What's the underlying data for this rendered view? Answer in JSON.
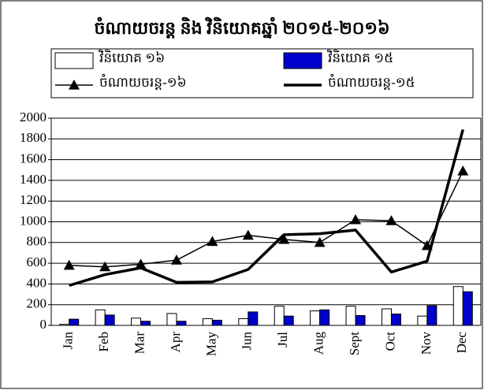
{
  "chart_data": {
    "type": "combo",
    "title": "ចំណាយចរន្ត និង វិនិយោគឆ្នាំ ២០១៥-២០១៦",
    "categories": [
      "Jan",
      "Feb",
      "Mar",
      "Apr",
      "May",
      "Jun",
      "Jul",
      "Aug",
      "Sept",
      "Oct",
      "Nov",
      "Dec"
    ],
    "series": [
      {
        "name": "វិនិយោគ ១៦",
        "type": "bar",
        "color": "#ffffff",
        "values": [
          10,
          150,
          70,
          115,
          65,
          65,
          185,
          140,
          185,
          160,
          90,
          375
        ]
      },
      {
        "name": "វិនិយោគ ១៥",
        "type": "bar",
        "color": "#0000cc",
        "values": [
          60,
          100,
          40,
          40,
          50,
          130,
          90,
          150,
          95,
          110,
          190,
          325
        ]
      },
      {
        "name": "ចំណាយចរន្ត-១៦",
        "type": "line",
        "color": "#000000",
        "marker": "triangle",
        "values": [
          580,
          565,
          590,
          630,
          810,
          870,
          830,
          800,
          1020,
          1010,
          770,
          1490
        ]
      },
      {
        "name": "ចំណាយចរន្ត-១៥",
        "type": "line",
        "color": "#000000",
        "line_width": 3.5,
        "values": [
          385,
          490,
          555,
          415,
          420,
          540,
          875,
          885,
          920,
          515,
          620,
          1890
        ]
      }
    ],
    "ylim": [
      0,
      2000
    ],
    "yticks": [
      0,
      200,
      400,
      600,
      800,
      1000,
      1200,
      1400,
      1600,
      1800,
      2000
    ],
    "grid": true,
    "legend": "top"
  }
}
